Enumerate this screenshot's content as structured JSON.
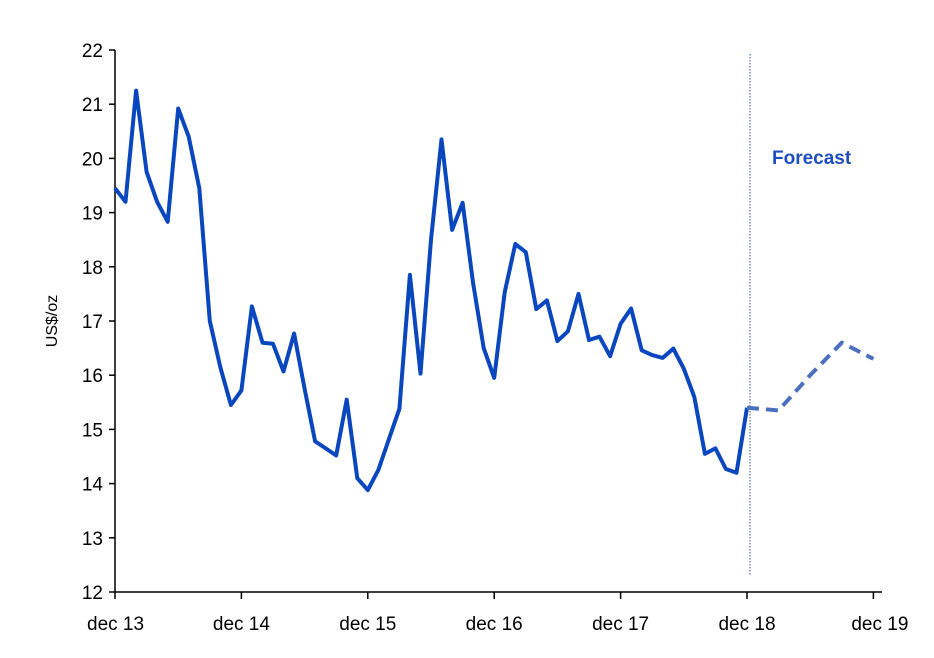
{
  "chart_data": {
    "type": "line",
    "title": "",
    "xlabel": "",
    "ylabel": "US$/oz",
    "ylim": [
      12,
      22
    ],
    "yticks": [
      12,
      13,
      14,
      15,
      16,
      17,
      18,
      19,
      20,
      21,
      22
    ],
    "xticks": [
      "dec 13",
      "dec 14",
      "dec 15",
      "dec 16",
      "dec 17",
      "dec 18",
      "dec 19"
    ],
    "grid": false,
    "legend": "none",
    "annotation": "Forecast",
    "colors": {
      "actual": "#0a47be",
      "forecast": "#4a6fc0",
      "divider": "#2f5597",
      "annotation": "#1f4fbf"
    },
    "series": [
      {
        "style": "solid",
        "x": [
          "2013-12",
          "2014-01",
          "2014-02",
          "2014-03",
          "2014-04",
          "2014-05",
          "2014-06",
          "2014-07",
          "2014-08",
          "2014-09",
          "2014-10",
          "2014-11",
          "2014-12",
          "2015-01",
          "2015-02",
          "2015-03",
          "2015-04",
          "2015-05",
          "2015-06",
          "2015-07",
          "2015-08",
          "2015-09",
          "2015-10",
          "2015-11",
          "2015-12",
          "2016-01",
          "2016-02",
          "2016-03",
          "2016-04",
          "2016-05",
          "2016-06",
          "2016-07",
          "2016-08",
          "2016-09",
          "2016-10",
          "2016-11",
          "2016-12",
          "2017-01",
          "2017-02",
          "2017-03",
          "2017-04",
          "2017-05",
          "2017-06",
          "2017-07",
          "2017-08",
          "2017-09",
          "2017-10",
          "2017-11",
          "2017-12",
          "2018-01",
          "2018-02",
          "2018-03",
          "2018-04",
          "2018-05",
          "2018-06",
          "2018-07",
          "2018-08",
          "2018-09",
          "2018-10",
          "2018-11",
          "2018-12"
        ],
        "values": [
          19.45,
          19.2,
          21.25,
          19.75,
          19.2,
          18.83,
          20.92,
          20.4,
          19.45,
          17.0,
          16.15,
          15.45,
          15.72,
          17.27,
          16.6,
          16.58,
          16.07,
          16.77,
          15.75,
          14.78,
          14.65,
          14.52,
          15.55,
          14.1,
          13.88,
          14.25,
          14.82,
          15.38,
          17.85,
          16.03,
          18.5,
          20.35,
          18.68,
          19.18,
          17.7,
          16.5,
          15.95,
          17.53,
          18.42,
          18.27,
          17.22,
          17.38,
          16.63,
          16.81,
          17.5,
          16.65,
          16.71,
          16.35,
          16.95,
          17.23,
          16.46,
          16.37,
          16.32,
          16.49,
          16.12,
          15.6,
          14.55,
          14.65,
          14.27,
          14.2,
          15.4
        ]
      },
      {
        "style": "dashed",
        "x": [
          "2018-12",
          "2019-03",
          "2019-06",
          "2019-09",
          "2019-12"
        ],
        "values": [
          15.4,
          15.35,
          16.0,
          16.6,
          16.3
        ]
      }
    ],
    "divider_x": "2018-12"
  }
}
